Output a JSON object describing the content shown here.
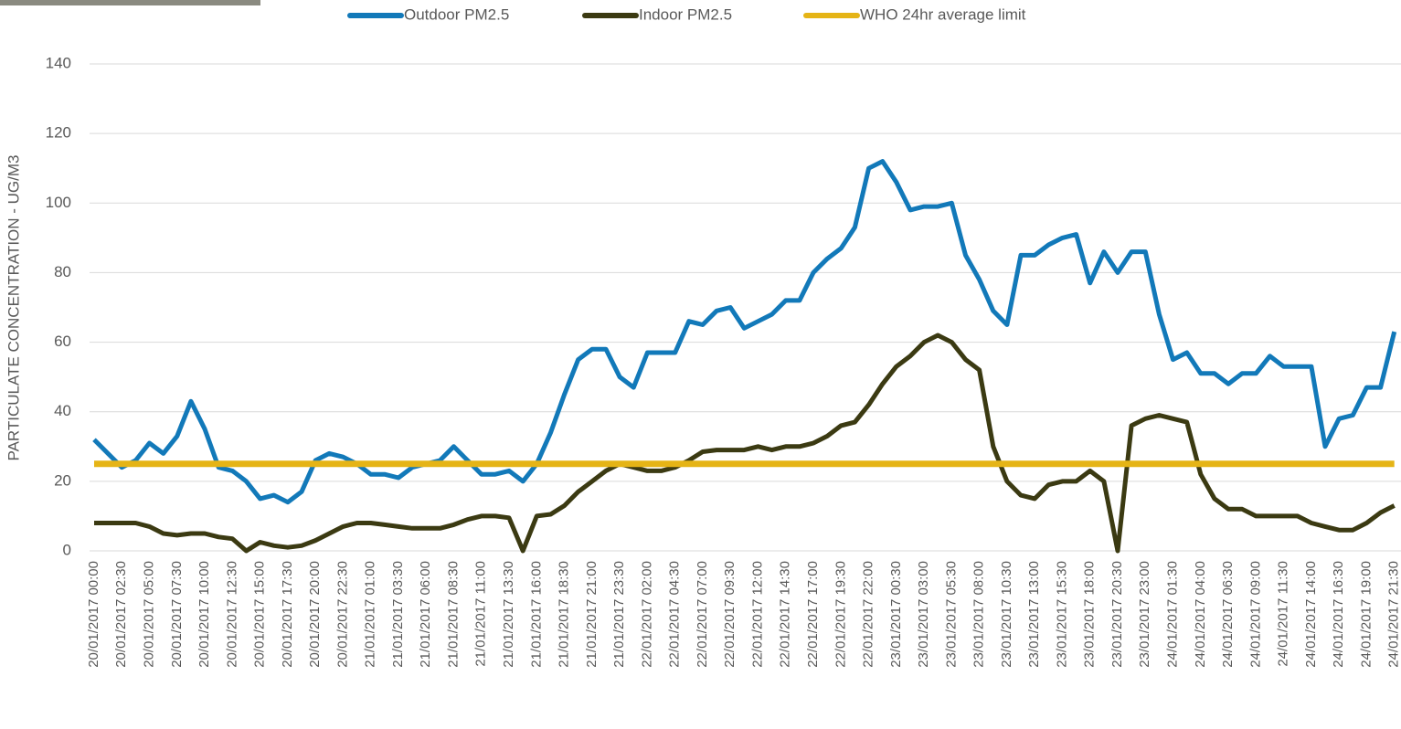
{
  "chart_data": {
    "type": "line",
    "y_label": "PARTICULATE CONCENTRATION - UG/M3",
    "categories": [
      "20/01/2017 00:00",
      null,
      "20/01/2017 02:30",
      null,
      "20/01/2017 05:00",
      null,
      "20/01/2017 07:30",
      null,
      "20/01/2017 10:00",
      null,
      "20/01/2017 12:30",
      null,
      "20/01/2017 15:00",
      null,
      "20/01/2017 17:30",
      null,
      "20/01/2017 20:00",
      null,
      "20/01/2017 22:30",
      null,
      "21/01/2017 01:00",
      null,
      "21/01/2017 03:30",
      null,
      "21/01/2017 06:00",
      null,
      "21/01/2017 08:30",
      null,
      "21/01/2017 11:00",
      null,
      "21/01/2017 13:30",
      null,
      "21/01/2017 16:00",
      null,
      "21/01/2017 18:30",
      null,
      "21/01/2017 21:00",
      null,
      "21/01/2017 23:30",
      null,
      "22/01/2017 02:00",
      null,
      "22/01/2017 04:30",
      null,
      "22/01/2017 07:00",
      null,
      "22/01/2017 09:30",
      null,
      "22/01/2017 12:00",
      null,
      "22/01/2017 14:30",
      null,
      "22/01/2017 17:00",
      null,
      "22/01/2017 19:30",
      null,
      "22/01/2017 22:00",
      null,
      "23/01/2017 00:30",
      null,
      "23/01/2017 03:00",
      null,
      "23/01/2017 05:30",
      null,
      "23/01/2017 08:00",
      null,
      "23/01/2017 10:30",
      null,
      "23/01/2017 13:00",
      null,
      "23/01/2017 15:30",
      null,
      "23/01/2017 18:00",
      null,
      "23/01/2017 20:30",
      null,
      "23/01/2017 23:00",
      null,
      "24/01/2017 01:30",
      null,
      "24/01/2017 04:00",
      null,
      "24/01/2017 06:30",
      null,
      "24/01/2017 09:00",
      null,
      "24/01/2017 11:30",
      null,
      "24/01/2017 14:00",
      null,
      "24/01/2017 16:30",
      null,
      "24/01/2017 19:00",
      null,
      "24/01/2017 21:30"
    ],
    "series": [
      {
        "name": "Outdoor PM2.5",
        "color": "#1279b9",
        "values": [
          32,
          28,
          24,
          26,
          31,
          28,
          33,
          43,
          35,
          24,
          23,
          20,
          15,
          16,
          14,
          17,
          26,
          28,
          27,
          25,
          22,
          22,
          21,
          24,
          25,
          26,
          30,
          26,
          22,
          22,
          23,
          20,
          25,
          34,
          45,
          55,
          58,
          58,
          50,
          47,
          57,
          57,
          57,
          66,
          65,
          69,
          70,
          64,
          66,
          68,
          72,
          72,
          80,
          84,
          87,
          93,
          110,
          112,
          106,
          98,
          99,
          99,
          100,
          85,
          78,
          69,
          65,
          85,
          85,
          88,
          90,
          91,
          77,
          86,
          80,
          86,
          86,
          68,
          55,
          57,
          51,
          51,
          48,
          51,
          51,
          56,
          53,
          53,
          53,
          30,
          38,
          39,
          47,
          47,
          63
        ]
      },
      {
        "name": "Indoor PM2.5",
        "color": "#3b3a12",
        "values": [
          8,
          8,
          8,
          8,
          7,
          5,
          4.5,
          5,
          5,
          4,
          3.5,
          0,
          2.5,
          1.5,
          1,
          1.5,
          3,
          5,
          7,
          8,
          8,
          7.5,
          7,
          6.5,
          6.5,
          6.5,
          7.5,
          9,
          10,
          10,
          9.5,
          0,
          10,
          10.5,
          13,
          17,
          20,
          23,
          25,
          24,
          23,
          23,
          24,
          26,
          28.5,
          29,
          29,
          29,
          30,
          29,
          30,
          30,
          31,
          33,
          36,
          37,
          42,
          48,
          53,
          56,
          60,
          62,
          60,
          55,
          52,
          30,
          20,
          16,
          15,
          19,
          20,
          20,
          23,
          20,
          0,
          36,
          38,
          39,
          38,
          37,
          22,
          15,
          12,
          12,
          10,
          10,
          10,
          10,
          8,
          7,
          6,
          6,
          8,
          11,
          13
        ]
      },
      {
        "name": "WHO 24hr average limit",
        "color": "#e5b416",
        "values": [
          25,
          25,
          25,
          25,
          25,
          25,
          25,
          25,
          25,
          25,
          25,
          25,
          25,
          25,
          25,
          25,
          25,
          25,
          25,
          25,
          25,
          25,
          25,
          25,
          25,
          25,
          25,
          25,
          25,
          25,
          25,
          25,
          25,
          25,
          25,
          25,
          25,
          25,
          25,
          25,
          25,
          25,
          25,
          25,
          25,
          25,
          25,
          25,
          25,
          25,
          25,
          25,
          25,
          25,
          25,
          25,
          25,
          25,
          25,
          25,
          25,
          25,
          25,
          25,
          25,
          25,
          25,
          25,
          25,
          25,
          25,
          25,
          25,
          25,
          25,
          25,
          25,
          25,
          25,
          25,
          25,
          25,
          25,
          25,
          25,
          25,
          25,
          25,
          25,
          25,
          25,
          25,
          25,
          25,
          25
        ]
      }
    ],
    "ylim": [
      0,
      140
    ],
    "yticks": [
      0,
      20,
      40,
      60,
      80,
      100,
      120,
      140
    ],
    "grid": true
  }
}
